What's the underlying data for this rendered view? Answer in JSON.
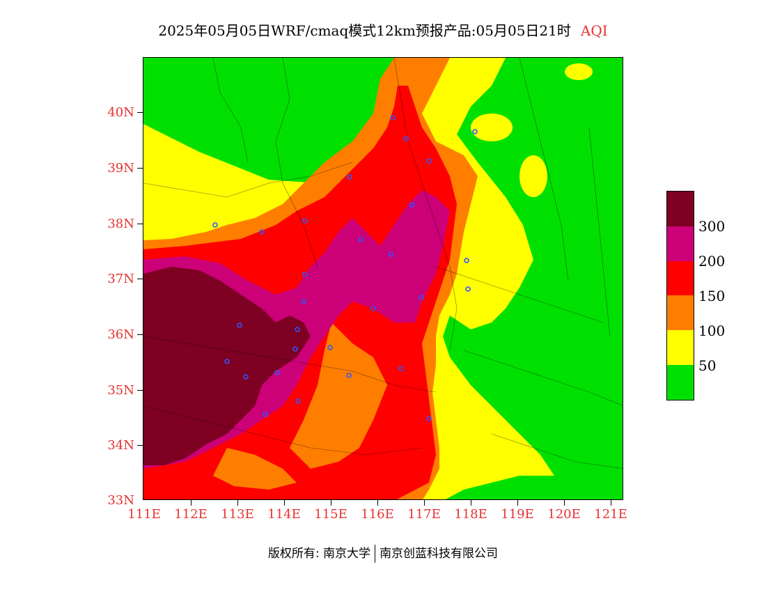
{
  "title": {
    "main": "2025年05月05日WRF/cmaq模式12km预报产品:05月05日21时",
    "variable": "AQI"
  },
  "map": {
    "lat_ticks": [
      "40N",
      "39N",
      "38N",
      "37N",
      "36N",
      "35N",
      "34N",
      "33N"
    ],
    "lon_ticks": [
      "111E",
      "112E",
      "113E",
      "114E",
      "115E",
      "116E",
      "117E",
      "118E",
      "119E",
      "120E",
      "121E"
    ],
    "lat_range": [
      33,
      41
    ],
    "lon_range": [
      111,
      121.3
    ],
    "colors": {
      "aqi_0_50": "#00e000",
      "aqi_50_100": "#ffff00",
      "aqi_100_150": "#ff7e00",
      "aqi_150_200": "#ff0000",
      "aqi_200_300": "#cc0077",
      "aqi_300_plus": "#7e0023"
    }
  },
  "legend": {
    "labels": [
      "300",
      "200",
      "150",
      "100",
      "50"
    ],
    "colors": [
      "#7e0023",
      "#cc0077",
      "#ff0000",
      "#ff7e00",
      "#ffff00",
      "#00e000"
    ]
  },
  "footer": {
    "copyright": "版权所有: 南京大学",
    "company": "南京创蓝科技有限公司"
  }
}
